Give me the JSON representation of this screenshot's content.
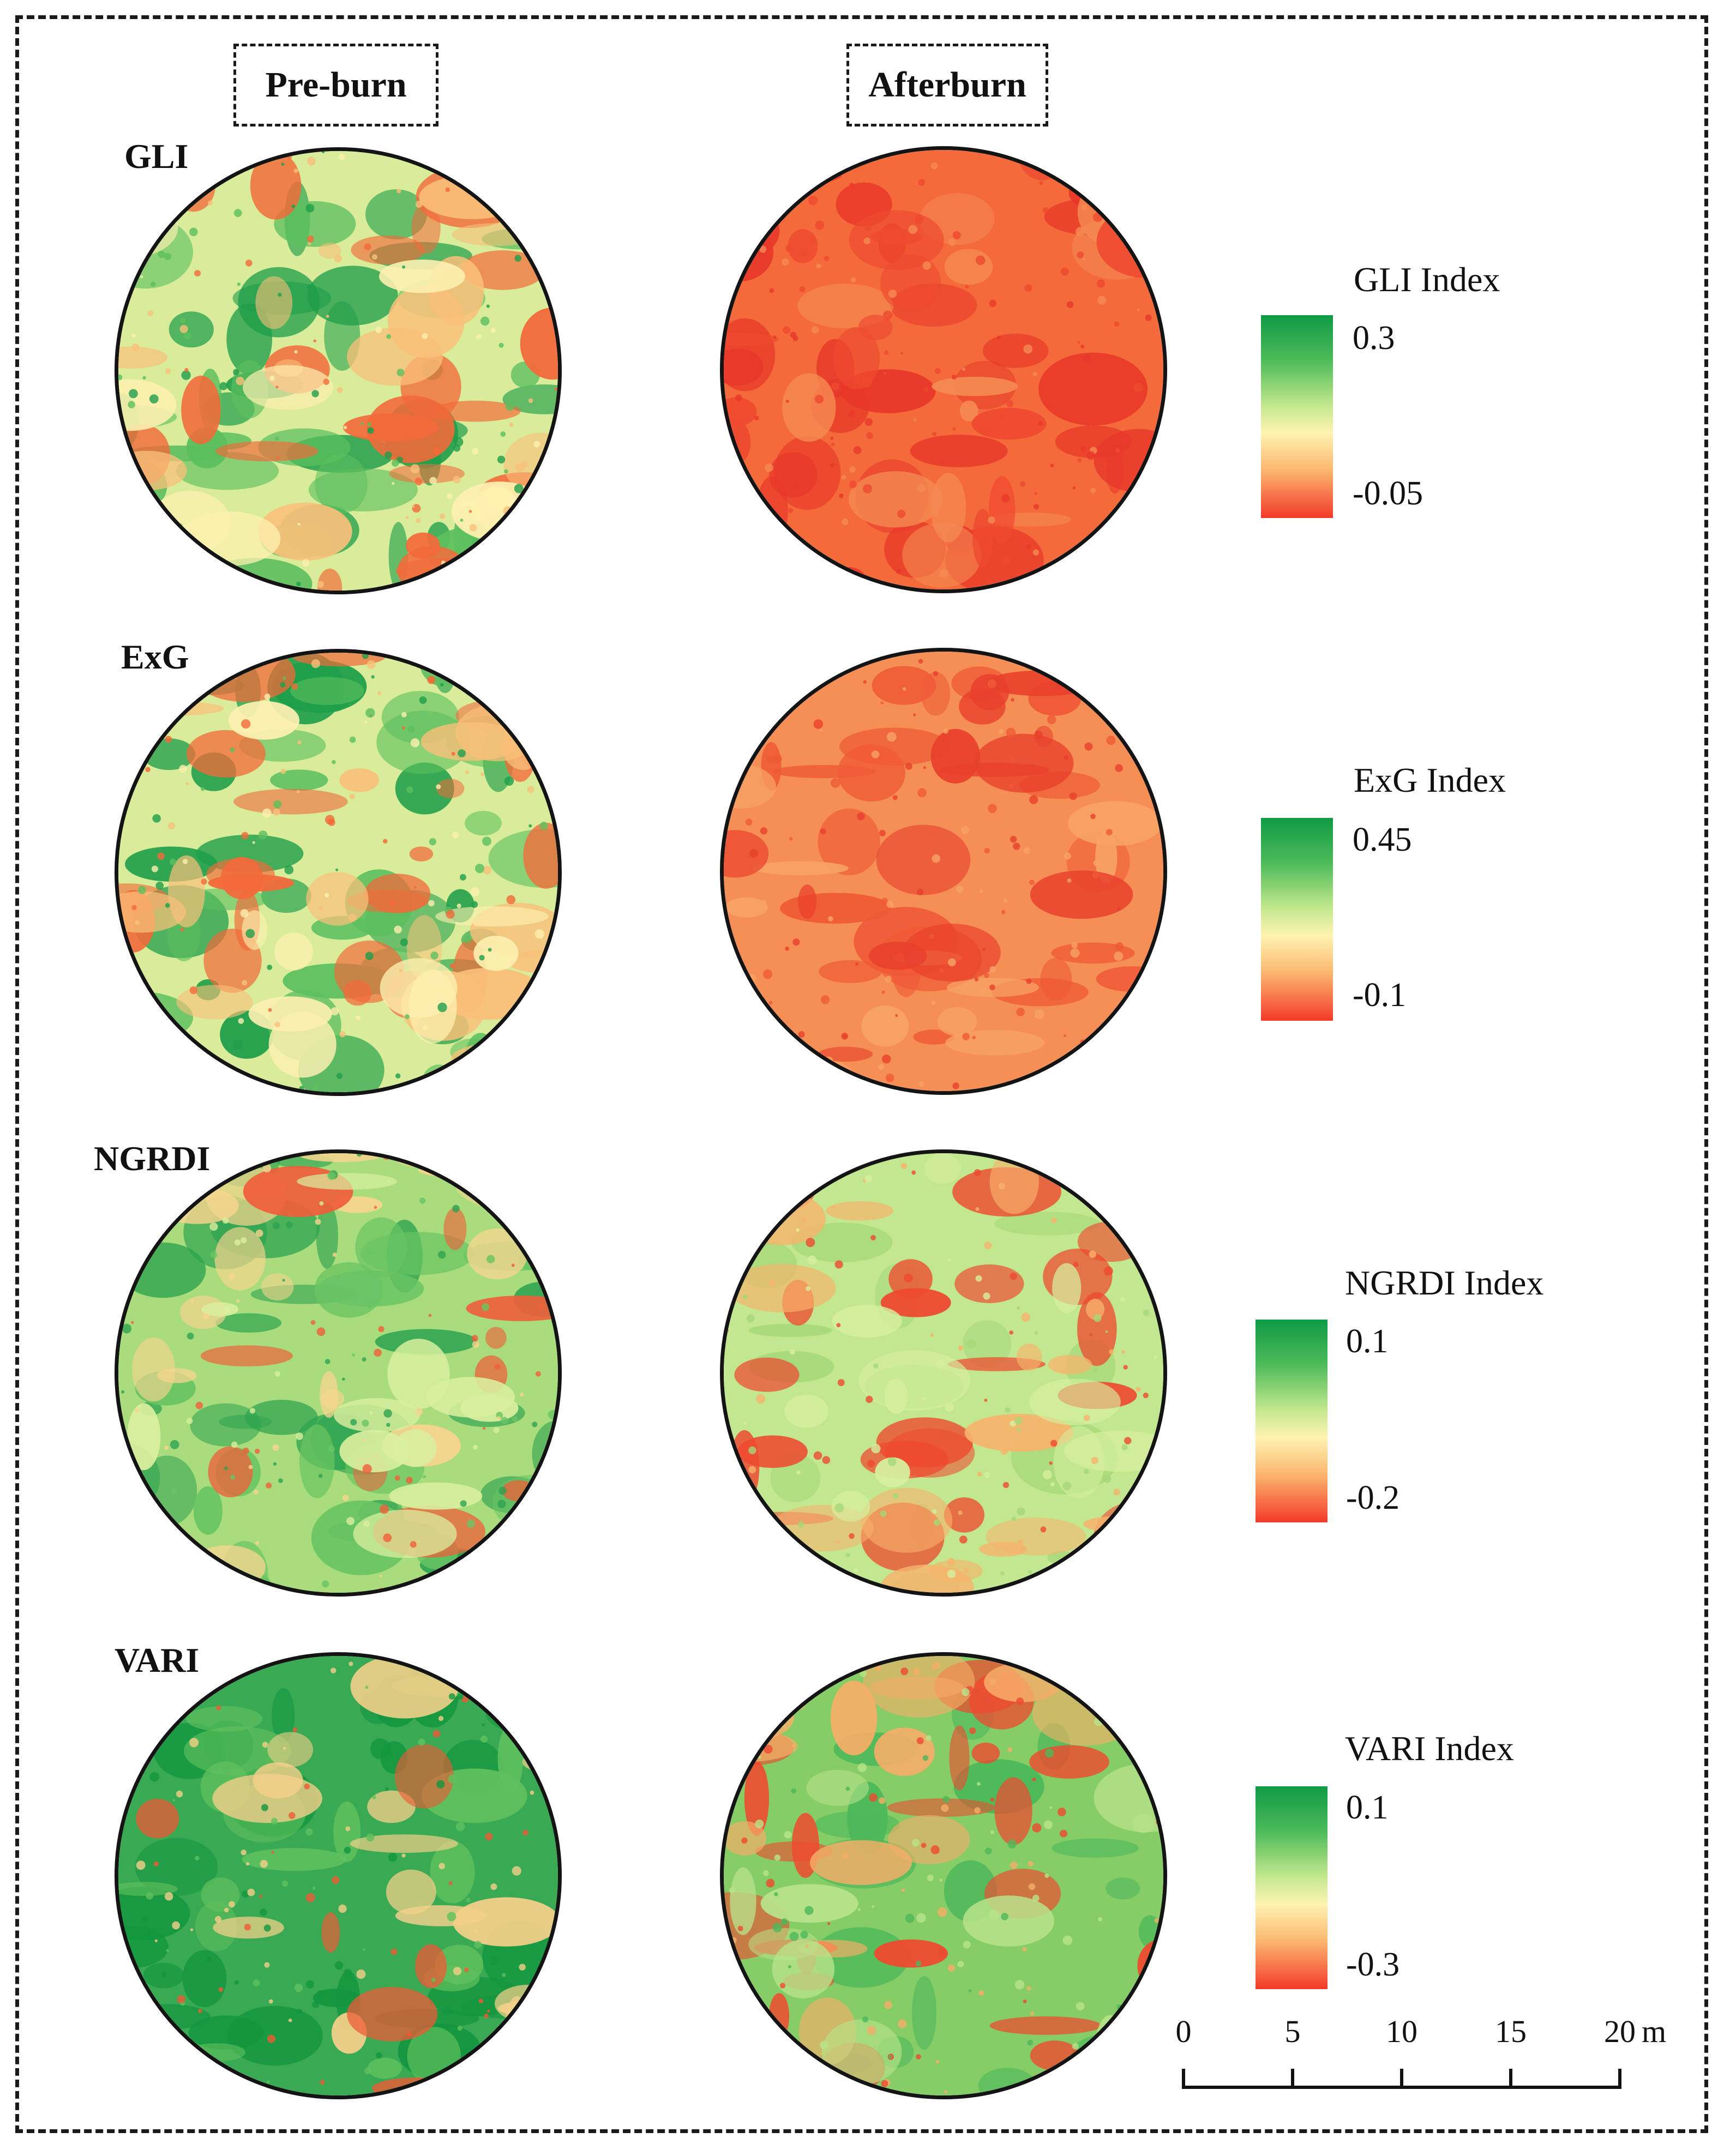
{
  "columns": {
    "pre": "Pre-burn",
    "after": "Afterburn"
  },
  "rows": [
    {
      "label": "GLI",
      "legend_title": "GLI Index",
      "legend_max": "0.3",
      "legend_min": "-0.05"
    },
    {
      "label": "ExG",
      "legend_title": "ExG Index",
      "legend_max": "0.45",
      "legend_min": "-0.1"
    },
    {
      "label": "NGRDI",
      "legend_title": "NGRDI Index",
      "legend_max": "0.1",
      "legend_min": "-0.2"
    },
    {
      "label": "VARI",
      "legend_title": "VARI Index",
      "legend_max": "0.1",
      "legend_min": "-0.3"
    }
  ],
  "scale_bar": {
    "ticks": [
      "0",
      "5",
      "10",
      "15",
      "20"
    ],
    "unit": "m"
  },
  "colors": {
    "high": "#0f9a46",
    "mid": "#fef3b2",
    "low": "#f23a2a",
    "frame": "#1a1a1a"
  }
}
